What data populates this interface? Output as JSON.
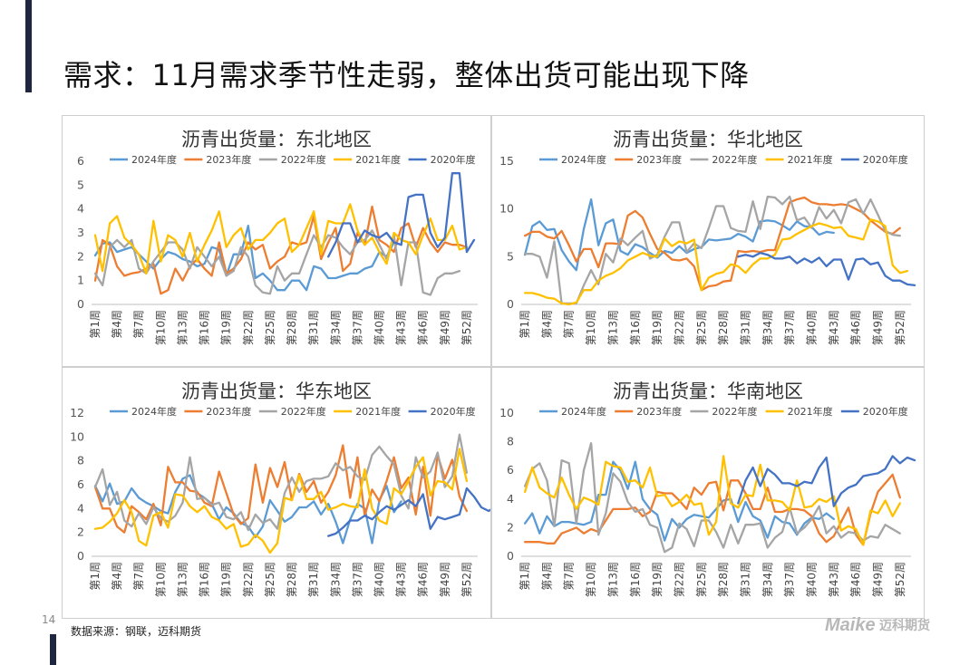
{
  "page": {
    "title": "需求：11月需求季节性走弱，整体出货可能出现下降",
    "page_number": "14",
    "source": "数据来源：钢联，迈科期货",
    "logo": "Maike迈科期货"
  },
  "colors": {
    "2024年度": "#5b9bd5",
    "2023年度": "#ed7d31",
    "2022年度": "#a5a5a5",
    "2021年度": "#ffc000",
    "2020年度": "#4472c4"
  },
  "chart_data": [
    {
      "type": "line",
      "title": "沥青出货量：东北地区",
      "ylim": [
        0,
        6
      ],
      "yticks": [
        0,
        1,
        2,
        3,
        4,
        5,
        6
      ],
      "xtick_labels": [
        "第1周",
        "第4周",
        "第7周",
        "第10周",
        "第13周",
        "第16周",
        "第19周",
        "第22周",
        "第25周",
        "第28周",
        "第31周",
        "第34周",
        "第37周",
        "第40周",
        "第43周",
        "第46周",
        "第49周",
        "第52周"
      ],
      "series": [
        {
          "name": "2024年度",
          "start": 1,
          "values": [
            2.05,
            2.55,
            2.6,
            2.2,
            2.3,
            2.4,
            2.1,
            1.8,
            1.5,
            1.9,
            2.2,
            2.1,
            1.9,
            1.8,
            1.6,
            1.7,
            2.4,
            2.3,
            1.2,
            2.1,
            2.1,
            3.3,
            1.1,
            1.3,
            1,
            0.6,
            0.6,
            1,
            1,
            0.6,
            1.6,
            1.5,
            1.1,
            1.1,
            1.2,
            1.3,
            1.3,
            1.5,
            1.6,
            2.2,
            2,
            2.6,
            2.5
          ]
        },
        {
          "name": "2023年度",
          "start": 1,
          "values": [
            1,
            2.7,
            2.5,
            1.6,
            1.2,
            1.3,
            1.35,
            1.5,
            1.7,
            0.45,
            0.6,
            1.5,
            1,
            1.6,
            1.9,
            1.5,
            1.2,
            2.6,
            1.3,
            1.5,
            1.9,
            2.6,
            2.3,
            2.5,
            1.5,
            1.8,
            2,
            2.6,
            2.5,
            2.6,
            3.7,
            1.9,
            2.6,
            3.2,
            1.4,
            1.7,
            3,
            2.5,
            4.1,
            2.7,
            2.5,
            2.2,
            3.2,
            3.4,
            2.4,
            3.2,
            2.6,
            2.2,
            2.6,
            2.5,
            2.5,
            2.4
          ]
        },
        {
          "name": "2022年度",
          "start": 1,
          "values": [
            1.3,
            0.8,
            2.4,
            2.7,
            2.4,
            2.7,
            1.5,
            1.3,
            1.8,
            2.2,
            2.6,
            2.6,
            2.3,
            1.5,
            2.4,
            2,
            1.6,
            2,
            1.2,
            1.4,
            2.4,
            2,
            0.8,
            0.5,
            0.45,
            1.6,
            1,
            1.3,
            1.3,
            2.1,
            2.9,
            2.4,
            2.9,
            2.8,
            2.4,
            2.1,
            2.6,
            2.7,
            3.1,
            2.5,
            1.9,
            2.9,
            0.8,
            2.6,
            2.6,
            0.5,
            0.4,
            1.1,
            1.3,
            1.3,
            1.4
          ]
        },
        {
          "name": "2021年度",
          "start": 1,
          "values": [
            2.9,
            1.4,
            3.4,
            3.7,
            2.8,
            2.5,
            2.1,
            1.3,
            3.5,
            1.8,
            2.9,
            2.7,
            2,
            3,
            1.8,
            2.5,
            3.1,
            3.9,
            2.4,
            2.9,
            3.2,
            2.3,
            2.7,
            2.7,
            3,
            3.4,
            3.6,
            2.2,
            2.5,
            3.2,
            3.9,
            2.1,
            3.5,
            3.4,
            3.4,
            4.2,
            3.1,
            2.5,
            2.8,
            2.2,
            1.7,
            3,
            2.7,
            2.6,
            2.1,
            2.9,
            3.6,
            2.7,
            2.7,
            3.3,
            2.3,
            2.4
          ]
        },
        {
          "name": "2020年度",
          "start": 33,
          "values": [
            2,
            2.6,
            3.4,
            3.4,
            2.6,
            3.1,
            2.9,
            2.8,
            3,
            2.6,
            2.5,
            4.5,
            4.6,
            4.6,
            3,
            2.4,
            2.8,
            5.5,
            5.5,
            2.2,
            2.7
          ]
        }
      ]
    },
    {
      "type": "line",
      "title": "沥青出货量：华北地区",
      "ylim": [
        0,
        15
      ],
      "yticks": [
        0,
        5,
        10,
        15
      ],
      "xtick_labels": [
        "第1周",
        "第4周",
        "第7周",
        "第10周",
        "第13周",
        "第16周",
        "第19周",
        "第22周",
        "第25周",
        "第28周",
        "第31周",
        "第34周",
        "第37周",
        "第40周",
        "第43周",
        "第46周",
        "第49周",
        "第52周"
      ],
      "series": [
        {
          "name": "2024年度",
          "start": 1,
          "values": [
            5.2,
            8.2,
            8.7,
            7.8,
            7.9,
            5.7,
            4.5,
            3.6,
            7.9,
            11,
            6.2,
            8.5,
            8.9,
            5.6,
            5.2,
            6.3,
            6,
            5.4,
            4.9,
            5.6,
            5.4,
            6.1,
            5.4,
            5.8,
            6,
            6.8,
            6.7,
            6.8,
            6.9,
            7.4,
            7.1,
            6.6,
            8.7,
            8.8,
            8.7,
            8.3,
            7.8,
            8.7,
            8.2,
            8.1,
            7.3,
            7.6,
            7.5
          ]
        },
        {
          "name": "2023年度",
          "start": 1,
          "values": [
            7.2,
            7.6,
            7.6,
            7.1,
            6.9,
            7.7,
            6.2,
            4.5,
            5.8,
            5.8,
            3.9,
            6.4,
            6.4,
            6.3,
            9.3,
            9.8,
            9.1,
            7.4,
            5.8,
            5.4,
            4.7,
            4.6,
            4.8,
            4,
            1.5,
            1.9,
            2,
            2.4,
            2.5,
            5.6,
            5.5,
            5.6,
            5.5,
            5.7,
            5.7,
            8.2,
            10.7,
            11,
            11.2,
            10.7,
            10.5,
            10.5,
            10.4,
            10.5,
            10.4,
            10,
            9.6,
            8.8,
            8.2,
            7.6,
            7.4,
            8
          ]
        },
        {
          "name": "2022年度",
          "start": 1,
          "values": [
            5.3,
            5.3,
            5,
            2.8,
            6.6,
            0.1,
            0.1,
            0.1,
            2,
            3.6,
            2.1,
            5.3,
            4.4,
            6.9,
            6.2,
            7,
            7.7,
            4.8,
            5.2,
            7.1,
            8.6,
            8.6,
            5.5,
            6.4,
            5.9,
            8,
            10.3,
            10.3,
            8,
            7.7,
            7.6,
            10.8,
            7.9,
            11.3,
            11.2,
            10.5,
            11.3,
            8.8,
            9.1,
            8,
            10.2,
            9,
            9.9,
            8.5,
            10.7,
            11,
            9.5,
            11,
            9.4,
            7.7,
            7.3,
            7.2
          ]
        },
        {
          "name": "2021年度",
          "start": 1,
          "values": [
            1.2,
            1.2,
            1,
            0.7,
            0.6,
            0.1,
            0,
            0.2,
            1.5,
            1.5,
            2.5,
            3,
            3.3,
            3.8,
            4.6,
            5,
            5.4,
            5.1,
            5,
            6.9,
            6.1,
            6.6,
            6.4,
            6.8,
            1.5,
            2.8,
            3.2,
            3.4,
            4.2,
            4,
            3.3,
            4.2,
            4.8,
            4.8,
            5.2,
            6.8,
            6.9,
            7.4,
            7.8,
            8.2,
            8.5,
            8.3,
            8,
            8.1,
            7.2,
            7,
            6.8,
            8.9,
            8.7,
            8.2,
            4.1,
            3.3,
            3.5
          ]
        },
        {
          "name": "2020年度",
          "start": 30,
          "values": [
            5,
            5.2,
            5,
            5.4,
            5.2,
            4.8,
            4.8,
            5,
            4.3,
            4.8,
            4.4,
            4.9,
            4,
            4.7,
            4.7,
            2.6,
            4.7,
            4.8,
            4.2,
            4.4,
            3,
            2.5,
            2.5,
            2.1,
            2
          ]
        }
      ]
    },
    {
      "type": "line",
      "title": "沥青出货量：华东地区",
      "ylim": [
        0,
        12
      ],
      "yticks": [
        0,
        2,
        4,
        6,
        8,
        10,
        12
      ],
      "xtick_labels": [
        "第1周",
        "第4周",
        "第7周",
        "第10周",
        "第13周",
        "第16周",
        "第19周",
        "第22周",
        "第25周",
        "第28周",
        "第31周",
        "第34周",
        "第37周",
        "第40周",
        "第43周",
        "第46周",
        "第49周",
        "第52周"
      ],
      "series": [
        {
          "name": "2024年度",
          "start": 1,
          "values": [
            5.9,
            4.6,
            6.1,
            4.4,
            4.6,
            5.7,
            4.9,
            4.5,
            4.2,
            3.8,
            3.6,
            5.4,
            6.5,
            6.8,
            5.3,
            4.9,
            4.4,
            3.1,
            4.1,
            3.6,
            2.8,
            2.5,
            1.6,
            2.5,
            4.7,
            3.8,
            2.9,
            3.3,
            4.1,
            4.1,
            4.6,
            3.5,
            4.4,
            2.9,
            1.1,
            3.1,
            4.4,
            4,
            1.1,
            4.7,
            5.9,
            3.7,
            4.6
          ]
        },
        {
          "name": "2023年度",
          "start": 1,
          "values": [
            5.8,
            4,
            4,
            2.5,
            2,
            4.2,
            3.7,
            3.1,
            4.4,
            2.6,
            7.5,
            6.2,
            6.2,
            5.5,
            5.4,
            4.5,
            4.2,
            7.1,
            5.3,
            3.5,
            2.7,
            3.2,
            7.7,
            4.5,
            7.4,
            5.8,
            7.9,
            4.7,
            6.9,
            5.4,
            6.3,
            4.5,
            5.4,
            6.8,
            9.3,
            4.9,
            8.3,
            3.4,
            5.6,
            4.6,
            6.3,
            8.3,
            5.7,
            6.6,
            3.5,
            7.5,
            3.4,
            8.5,
            6.5,
            8.1,
            5,
            3.8
          ]
        },
        {
          "name": "2022年度",
          "start": 1,
          "values": [
            5.8,
            7.3,
            4.3,
            5.4,
            3,
            2.5,
            3.6,
            2.7,
            4.1,
            3.2,
            2.9,
            3.4,
            4.5,
            8.3,
            4.8,
            4.9,
            4.3,
            4.5,
            3.3,
            3.1,
            3.7,
            2.2,
            3.5,
            2.8,
            3.1,
            2.3,
            5.3,
            6.6,
            5.4,
            6.3,
            6.5,
            6.5,
            6.7,
            7.8,
            7.2,
            7.5,
            6.7,
            6.4,
            8.5,
            9.2,
            8.4,
            7.7,
            5.1,
            4,
            8.3,
            6.6,
            7.1,
            8.7,
            5.8,
            6.7,
            10.2,
            7
          ]
        },
        {
          "name": "2021年度",
          "start": 1,
          "values": [
            2.3,
            2.4,
            2.9,
            3.6,
            4.7,
            3.7,
            1.3,
            0.9,
            3.4,
            3.7,
            2.4,
            5.2,
            5.1,
            4.2,
            3.7,
            4.2,
            3.3,
            3,
            2.3,
            2.7,
            0.8,
            1,
            1.8,
            1.3,
            0.3,
            1.1,
            4.9,
            4.7,
            6.8,
            4.8,
            4.8,
            5.4,
            3.9,
            4.1,
            4.4,
            4.2,
            4.1,
            7.3,
            4,
            3,
            2.7,
            5.7,
            5.2,
            6.3,
            7.5,
            8.3,
            5.1,
            6.3,
            6.2,
            5.6,
            9,
            6.3
          ]
        },
        {
          "name": "2020年度",
          "start": 33,
          "values": [
            1.7,
            1.9,
            2.4,
            3,
            3,
            3.4,
            3.1,
            3.7,
            4.2,
            3.9,
            4.3,
            4.7,
            4.2,
            5.2,
            2.3,
            3.3,
            3.1,
            3.3,
            3.5,
            5.7,
            5,
            4.1,
            3.8,
            4.2,
            3.5
          ]
        }
      ]
    },
    {
      "type": "line",
      "title": "沥青出货量：华南地区",
      "ylim": [
        0,
        10
      ],
      "yticks": [
        0,
        2,
        4,
        6,
        8,
        10
      ],
      "xtick_labels": [
        "第1周",
        "第4周",
        "第7周",
        "第10周",
        "第13周",
        "第16周",
        "第19周",
        "第22周",
        "第25周",
        "第28周",
        "第31周",
        "第34周",
        "第37周",
        "第40周",
        "第43周",
        "第46周",
        "第49周",
        "第52周"
      ],
      "series": [
        {
          "name": "2024年度",
          "start": 1,
          "values": [
            2.3,
            3,
            1.6,
            2.8,
            2.1,
            2.4,
            2.4,
            2.3,
            2.2,
            2.4,
            4.3,
            4.3,
            6.6,
            6,
            4.7,
            6.6,
            4,
            3.3,
            2.9,
            1.1,
            2.6,
            2,
            2.6,
            2.9,
            2.8,
            2.7,
            3.3,
            3.9,
            4,
            2.4,
            3.8,
            2.8,
            2.5,
            1.3,
            2.8,
            2.4,
            2.3,
            1.5,
            2.3,
            2.7,
            2.6,
            3,
            2.6
          ]
        },
        {
          "name": "2023年度",
          "start": 1,
          "values": [
            1,
            1,
            1,
            0.9,
            0.9,
            1.6,
            1.8,
            2,
            1.6,
            1.9,
            1.7,
            2.5,
            3.3,
            3.3,
            3.3,
            3.4,
            2.8,
            3.1,
            4.5,
            4.4,
            4.4,
            3.9,
            3.3,
            4.8,
            4.3,
            5.1,
            5.2,
            3.2,
            5.3,
            5.3,
            4.4,
            3.3,
            3.3,
            4.8,
            3.1,
            3.1,
            3.3,
            3.3,
            3.2,
            2.8,
            1.6,
            1,
            1.4,
            2.4,
            3.4,
            1.5,
            0.8,
            3,
            4.5,
            5.1,
            5.7,
            4.1
          ]
        },
        {
          "name": "2022年度",
          "start": 1,
          "values": [
            4.9,
            6.1,
            6.5,
            5.3,
            2.1,
            6.7,
            6.5,
            2.3,
            6,
            7.9,
            1.5,
            3,
            5.8,
            5.2,
            3.8,
            3.1,
            3.3,
            2.2,
            2,
            0.3,
            0.6,
            2.3,
            1.9,
            0.7,
            2.5,
            2.5,
            1.7,
            0.6,
            2.2,
            0.9,
            2.2,
            2.2,
            2.3,
            0.6,
            1.3,
            1.7,
            3.4,
            1.6,
            2,
            2.6,
            3.5,
            1.6,
            2.1,
            1.3,
            1.7,
            1.6,
            1.1,
            1.4,
            1.3,
            2.2,
            1.9,
            1.6
          ]
        },
        {
          "name": "2021年度",
          "start": 1,
          "values": [
            4.5,
            6.2,
            4.8,
            4.4,
            4.1,
            5.5,
            4.3,
            3.3,
            4.1,
            3.9,
            3.6,
            6.6,
            6.3,
            6.2,
            5.2,
            5.3,
            4.8,
            6.2,
            4.2,
            4.3,
            3.5,
            3.8,
            4.3,
            3.6,
            3.7,
            1.5,
            2.4,
            7,
            3.7,
            3.4,
            4.3,
            4.2,
            6.4,
            3.9,
            3.9,
            3.8,
            3.2,
            5.3,
            3.4,
            3.5,
            4,
            3.8,
            4.2,
            1.8,
            2.1,
            1.9,
            0.8,
            3.2,
            3,
            3.9,
            2.8,
            3.7
          ]
        },
        {
          "name": "2020年度",
          "start": 30,
          "values": [
            3.7,
            5.3,
            6.2,
            4.9,
            6.1,
            5.7,
            5.1,
            5.1,
            4.9,
            5.2,
            5.1,
            6.2,
            6.9,
            3.5,
            4.4,
            4.8,
            5,
            5.6,
            5.7,
            5.8,
            6.1,
            7,
            6.5,
            6.9,
            6.7
          ]
        }
      ]
    }
  ]
}
